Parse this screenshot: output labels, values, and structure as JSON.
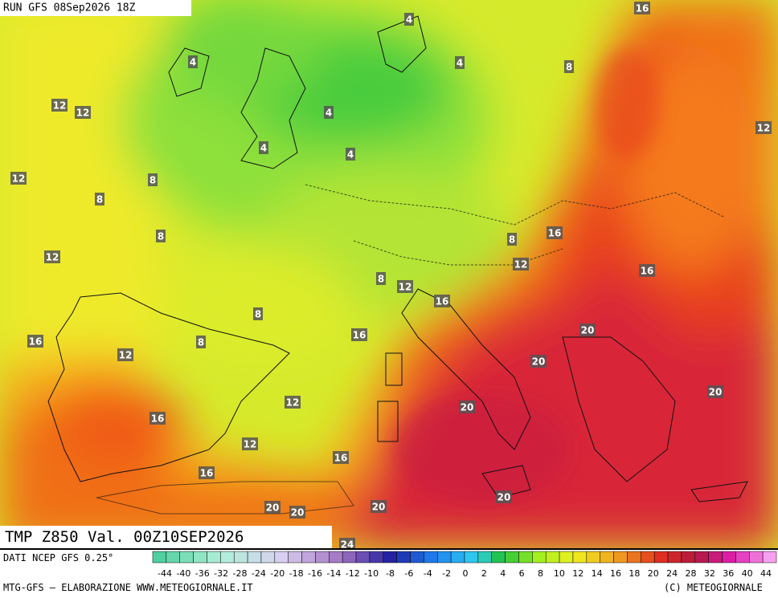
{
  "header": {
    "run": "RUN GFS 08Sep2026 18Z"
  },
  "map": {
    "contour_labels": [
      4,
      4,
      4,
      8,
      16,
      12,
      12,
      4,
      12,
      4,
      4,
      12,
      8,
      8,
      8,
      16,
      8,
      12,
      12,
      16,
      8,
      12,
      16,
      8,
      20,
      16,
      16,
      8,
      12,
      20,
      20,
      12,
      20,
      16,
      12,
      16,
      16,
      20,
      20,
      20,
      20,
      24
    ]
  },
  "footer": {
    "title": "TMP Z850 Val. 00Z10SEP2026",
    "source": "DATI NCEP GFS 0.25°",
    "credit": "MTG-GFS — ELABORAZIONE WWW.METEOGIORNALE.IT",
    "copyright": "(C) METEOGIORNALE"
  },
  "colorbar": {
    "labels": [
      -44,
      -40,
      -36,
      -32,
      -28,
      -24,
      -20,
      -18,
      -16,
      -14,
      -12,
      -10,
      -8,
      -6,
      -4,
      -2,
      0,
      2,
      4,
      6,
      8,
      10,
      12,
      14,
      16,
      18,
      20,
      24,
      28,
      32,
      36,
      40,
      44
    ]
  }
}
